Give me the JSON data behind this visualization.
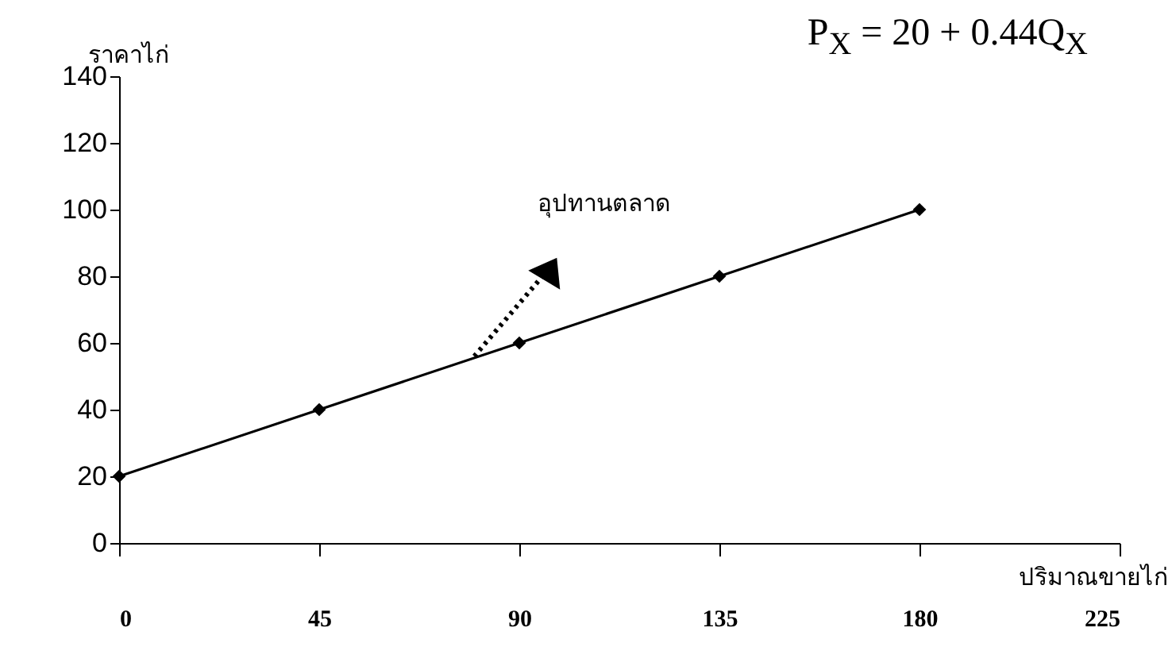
{
  "chart_data": {
    "type": "line",
    "ylabel": "ราคาไก่",
    "xlabel": "ปริมาณขายไก่",
    "x": [
      0,
      45,
      90,
      135,
      180
    ],
    "series": [
      {
        "color": "#000000",
        "values": [
          20,
          40,
          60,
          80,
          100
        ]
      }
    ],
    "xlim": [
      0,
      225
    ],
    "xticks": [
      0,
      45,
      90,
      135,
      180,
      225
    ],
    "ylim": [
      0,
      140
    ],
    "yticks": [
      0,
      20,
      40,
      60,
      80,
      100,
      120,
      140
    ],
    "grid": false,
    "marker": "diamond",
    "line_style": "solid",
    "annotations": [
      "P$_{X}$ = 20 + 0.44Q$_{X}$",
      "อุปทานตลาด"
    ]
  }
}
